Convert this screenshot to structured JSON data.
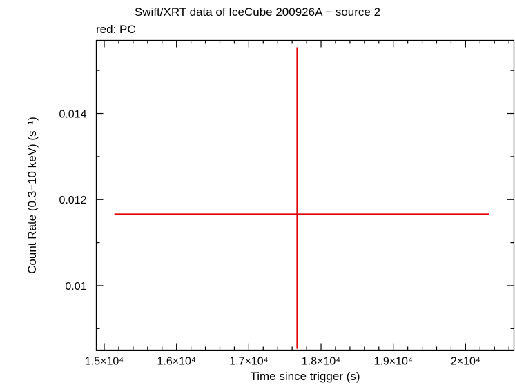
{
  "chart_data": {
    "type": "scatter",
    "title": "Swift/XRT data of IceCube 200926A − source 2",
    "subtitle": "red: PC",
    "xlabel": "Time since trigger (s)",
    "ylabel": "Count Rate (0.3−10 keV) (s⁻¹)",
    "xlim": [
      14890,
      20670
    ],
    "ylim": [
      0.0085,
      0.0157
    ],
    "x_ticks": [
      {
        "value": 15000,
        "label": "1.5×10⁴"
      },
      {
        "value": 16000,
        "label": "1.6×10⁴"
      },
      {
        "value": 17000,
        "label": "1.7×10⁴"
      },
      {
        "value": 18000,
        "label": "1.8×10⁴"
      },
      {
        "value": 19000,
        "label": "1.9×10⁴"
      },
      {
        "value": 20000,
        "label": "2×10⁴"
      }
    ],
    "y_ticks": [
      {
        "value": 0.01,
        "label": "0.01"
      },
      {
        "value": 0.012,
        "label": "0.012"
      },
      {
        "value": 0.014,
        "label": "0.014"
      }
    ],
    "series": [
      {
        "color": "#e00000",
        "points": [
          {
            "x": 17670,
            "x_low": 15140,
            "x_high": 20330,
            "y": 0.01166,
            "y_low": 0.00853,
            "y_high": 0.01554
          }
        ]
      }
    ],
    "grid": false
  }
}
